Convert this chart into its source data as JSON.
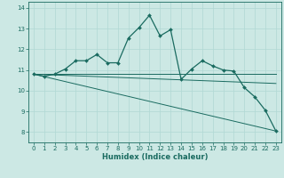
{
  "xlabel": "Humidex (Indice chaleur)",
  "background_color": "#cce8e4",
  "grid_color": "#b0d8d4",
  "line_color": "#1a6b60",
  "xlim": [
    -0.5,
    23.5
  ],
  "ylim": [
    7.5,
    14.3
  ],
  "yticks": [
    8,
    9,
    10,
    11,
    12,
    13,
    14
  ],
  "xticks": [
    0,
    1,
    2,
    3,
    4,
    5,
    6,
    7,
    8,
    9,
    10,
    11,
    12,
    13,
    14,
    15,
    16,
    17,
    18,
    19,
    20,
    21,
    22,
    23
  ],
  "series1_x": [
    0,
    1,
    2,
    3,
    4,
    5,
    6,
    7,
    8,
    9,
    10,
    11,
    12,
    13,
    14,
    15,
    16,
    17,
    18,
    19,
    20,
    21,
    22,
    23
  ],
  "series1_y": [
    10.8,
    10.7,
    10.8,
    11.05,
    11.45,
    11.45,
    11.75,
    11.35,
    11.35,
    12.55,
    13.05,
    13.65,
    12.65,
    12.95,
    10.55,
    11.05,
    11.45,
    11.2,
    11.0,
    10.95,
    10.15,
    9.7,
    9.05,
    8.05
  ],
  "series2_x": [
    0,
    23
  ],
  "series2_y": [
    10.8,
    10.8
  ],
  "series3_x": [
    0,
    23
  ],
  "series3_y": [
    10.8,
    8.05
  ],
  "series4_x": [
    0,
    23
  ],
  "series4_y": [
    10.8,
    10.35
  ]
}
